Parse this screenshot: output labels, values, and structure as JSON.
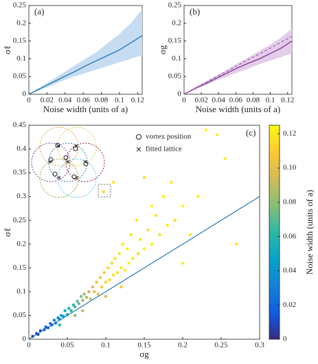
{
  "chart_data": [
    {
      "type": "band-line",
      "annotation": "(a)",
      "xlabel": "Noise width (units of a)",
      "ylabel": "σℓ",
      "x": [
        0,
        0.0125,
        0.025,
        0.0375,
        0.05,
        0.0625,
        0.075,
        0.0875,
        0.1,
        0.1125,
        0.125
      ],
      "xlim": [
        0,
        0.125
      ],
      "xticks": [
        0,
        0.02,
        0.04,
        0.06,
        0.08,
        0.1,
        0.12
      ],
      "ylim": [
        0,
        0.25
      ],
      "yticks": [
        0,
        0.05,
        0.1,
        0.15,
        0.2,
        0.25
      ],
      "series": [
        {
          "color": "#1f77b4",
          "band_color": "#c6dcf2",
          "dashed": false,
          "values": [
            0,
            0.016,
            0.032,
            0.048,
            0.063,
            0.08,
            0.095,
            0.11,
            0.125,
            0.145,
            0.165
          ],
          "lower": [
            0,
            0.012,
            0.025,
            0.038,
            0.05,
            0.06,
            0.07,
            0.08,
            0.09,
            0.1,
            0.11
          ],
          "upper": [
            0,
            0.02,
            0.04,
            0.06,
            0.08,
            0.1,
            0.12,
            0.145,
            0.17,
            0.2,
            0.24
          ]
        }
      ]
    },
    {
      "type": "band-line",
      "annotation": "(b)",
      "xlabel": "Noise width (units of a)",
      "ylabel": "σg",
      "x": [
        0,
        0.0125,
        0.025,
        0.0375,
        0.05,
        0.0625,
        0.075,
        0.0875,
        0.1,
        0.1125,
        0.125
      ],
      "xlim": [
        0,
        0.125
      ],
      "xticks": [
        0,
        0.02,
        0.04,
        0.06,
        0.08,
        0.1,
        0.12
      ],
      "ylim": [
        0,
        0.25
      ],
      "yticks": [
        0,
        0.05,
        0.1,
        0.15,
        0.2,
        0.25
      ],
      "series": [
        {
          "color": "#7e2f8e",
          "band_color": "#e3cdea",
          "dashed": false,
          "values": [
            0,
            0.016,
            0.03,
            0.045,
            0.06,
            0.075,
            0.088,
            0.1,
            0.115,
            0.13,
            0.15
          ],
          "lower": [
            0,
            0.013,
            0.026,
            0.039,
            0.05,
            0.062,
            0.073,
            0.085,
            0.095,
            0.105,
            0.115
          ],
          "upper": [
            0,
            0.02,
            0.036,
            0.053,
            0.07,
            0.088,
            0.105,
            0.122,
            0.14,
            0.16,
            0.185
          ]
        },
        {
          "color": "#a560b0",
          "dashed": true,
          "values": [
            0,
            0.0163,
            0.0326,
            0.049,
            0.065,
            0.082,
            0.098,
            0.114,
            0.13,
            0.147,
            0.163
          ]
        }
      ]
    },
    {
      "type": "scatter",
      "annotation": "(c)",
      "xlabel": "σg",
      "ylabel": "σℓ",
      "legend_items": [
        "vortex position",
        "fitted lattice"
      ],
      "xlim": [
        0,
        0.3
      ],
      "xticks": [
        0,
        0.05,
        0.1,
        0.15,
        0.2,
        0.25,
        0.3
      ],
      "ylim": [
        0,
        0.45
      ],
      "yticks": [
        0,
        0.05,
        0.1,
        0.15,
        0.2,
        0.25,
        0.3,
        0.35,
        0.4,
        0.45
      ],
      "colormap": "parula",
      "clim": [
        0,
        0.125
      ],
      "cticks": [
        0,
        0.02,
        0.04,
        0.06,
        0.08,
        {
          "value": 0.1,
          "label": "0.10"
        },
        0.12
      ],
      "clabel": "Noise width (units of a)",
      "line": {
        "color": "#1f77b4",
        "x": [
          0,
          0.3
        ],
        "values": [
          0,
          0.3
        ]
      },
      "x": [
        0.005,
        0.01,
        0.012,
        0.015,
        0.02,
        0.022,
        0.025,
        0.028,
        0.03,
        0.033,
        0.035,
        0.038,
        0.04,
        0.042,
        0.045,
        0.047,
        0.05,
        0.052,
        0.055,
        0.058,
        0.06,
        0.063,
        0.065,
        0.068,
        0.07,
        0.072,
        0.075,
        0.078,
        0.08,
        0.083,
        0.085,
        0.088,
        0.09,
        0.093,
        0.095,
        0.098,
        0.1,
        0.103,
        0.105,
        0.108,
        0.11,
        0.112,
        0.115,
        0.118,
        0.12,
        0.122,
        0.125,
        0.128,
        0.13,
        0.133,
        0.135,
        0.14,
        0.142,
        0.145,
        0.15,
        0.155,
        0.16,
        0.165,
        0.17,
        0.175,
        0.18,
        0.185,
        0.19,
        0.2,
        0.21,
        0.22,
        0.23,
        0.245,
        0.255,
        0.27,
        0.097,
        0.11,
        0.15,
        0.16,
        0.07,
        0.1,
        0.12,
        0.06,
        0.04,
        0.2
      ],
      "values": [
        0.006,
        0.012,
        0.01,
        0.018,
        0.02,
        0.026,
        0.024,
        0.033,
        0.03,
        0.04,
        0.034,
        0.045,
        0.042,
        0.05,
        0.048,
        0.06,
        0.052,
        0.065,
        0.06,
        0.072,
        0.068,
        0.08,
        0.075,
        0.09,
        0.082,
        0.095,
        0.088,
        0.1,
        0.085,
        0.11,
        0.1,
        0.12,
        0.095,
        0.13,
        0.11,
        0.14,
        0.12,
        0.15,
        0.125,
        0.16,
        0.135,
        0.17,
        0.14,
        0.18,
        0.15,
        0.2,
        0.145,
        0.19,
        0.16,
        0.22,
        0.17,
        0.25,
        0.18,
        0.21,
        0.19,
        0.23,
        0.2,
        0.26,
        0.22,
        0.3,
        0.24,
        0.33,
        0.25,
        0.28,
        0.22,
        0.3,
        0.44,
        0.43,
        0.38,
        0.2,
        0.31,
        0.33,
        0.34,
        0.28,
        0.06,
        0.09,
        0.11,
        0.05,
        0.03,
        0.16
      ],
      "colors": [
        0.004,
        0.008,
        0.01,
        0.012,
        0.015,
        0.018,
        0.02,
        0.024,
        0.026,
        0.03,
        0.033,
        0.036,
        0.04,
        0.043,
        0.046,
        0.05,
        0.053,
        0.056,
        0.06,
        0.063,
        0.066,
        0.07,
        0.073,
        0.076,
        0.08,
        0.083,
        0.086,
        0.09,
        0.093,
        0.096,
        0.1,
        0.102,
        0.104,
        0.106,
        0.108,
        0.11,
        0.112,
        0.113,
        0.114,
        0.115,
        0.116,
        0.117,
        0.118,
        0.119,
        0.12,
        0.121,
        0.122,
        0.123,
        0.124,
        0.118,
        0.12,
        0.122,
        0.115,
        0.119,
        0.121,
        0.117,
        0.123,
        0.12,
        0.118,
        0.122,
        0.121,
        0.12,
        0.116,
        0.123,
        0.119,
        0.122,
        0.124,
        0.121,
        0.12,
        0.118,
        0.113,
        0.12,
        0.117,
        0.124,
        0.09,
        0.1,
        0.11,
        0.08,
        0.06,
        0.122
      ]
    }
  ]
}
